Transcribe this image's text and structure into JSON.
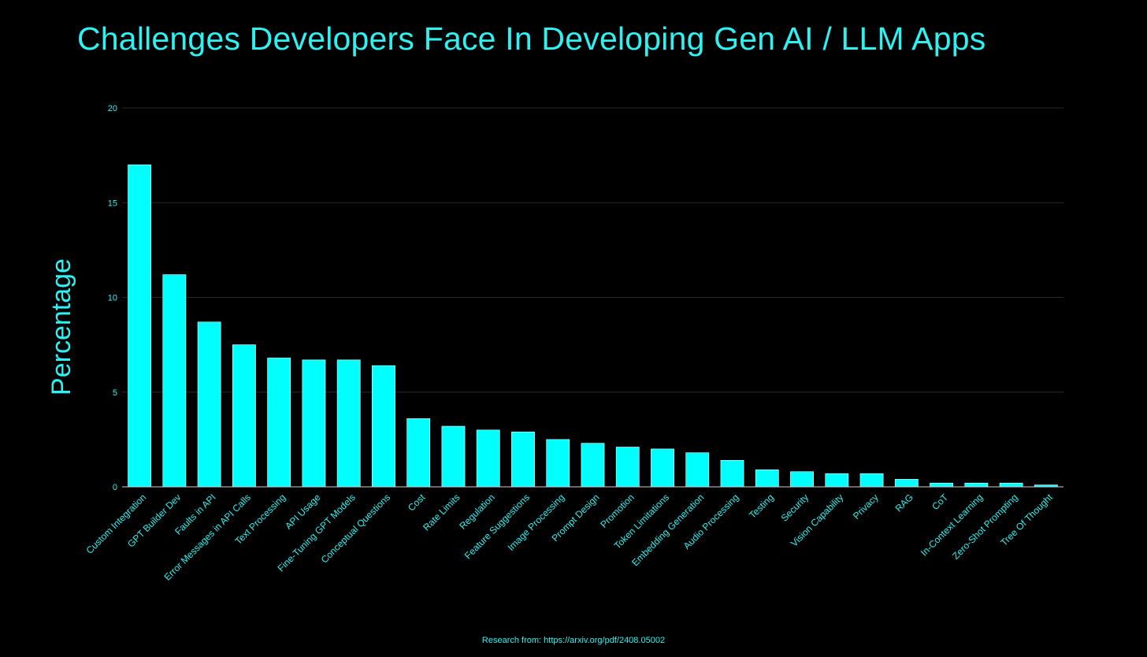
{
  "colors": {
    "background": "#000000",
    "accent": "#2ef2f2",
    "bar_fill": "#00ffff",
    "gridline": "#2a2a2a",
    "axis_line": "#cfcfcf"
  },
  "chart_data": {
    "type": "bar",
    "title": "Challenges Developers Face In Developing Gen AI / LLM Apps",
    "xlabel": "",
    "ylabel": "Percentage",
    "ylim": [
      0,
      20
    ],
    "yticks": [
      0,
      5,
      10,
      15,
      20
    ],
    "grid": true,
    "legend": "none",
    "categories": [
      "Custom Integration",
      "GPT Builder Dev",
      "Faults in API",
      "Error Messages in API Calls",
      "Text Processing",
      "API Usage",
      "Fine-Tuning GPT Models",
      "Conceptual Questions",
      "Cost",
      "Rate Limits",
      "Regulation",
      "Feature Suggestions",
      "Image Processing",
      "Prompt Design",
      "Promotion",
      "Token Limitations",
      "Embedding Generation",
      "Audio Processing",
      "Testing",
      "Security",
      "Vision Capability",
      "Privacy",
      "RAG",
      "CoT",
      "In-Context Learning",
      "Zero-Shot Prompting",
      "Tree Of Thought"
    ],
    "values": [
      17.0,
      11.2,
      8.7,
      7.5,
      6.8,
      6.7,
      6.7,
      6.4,
      3.6,
      3.2,
      3.0,
      2.9,
      2.5,
      2.3,
      2.1,
      2.0,
      1.8,
      1.4,
      0.9,
      0.8,
      0.7,
      0.7,
      0.4,
      0.2,
      0.2,
      0.2,
      0.1
    ]
  },
  "footer": {
    "source": "Research from: https://arxiv.org/pdf/2408.05002"
  }
}
